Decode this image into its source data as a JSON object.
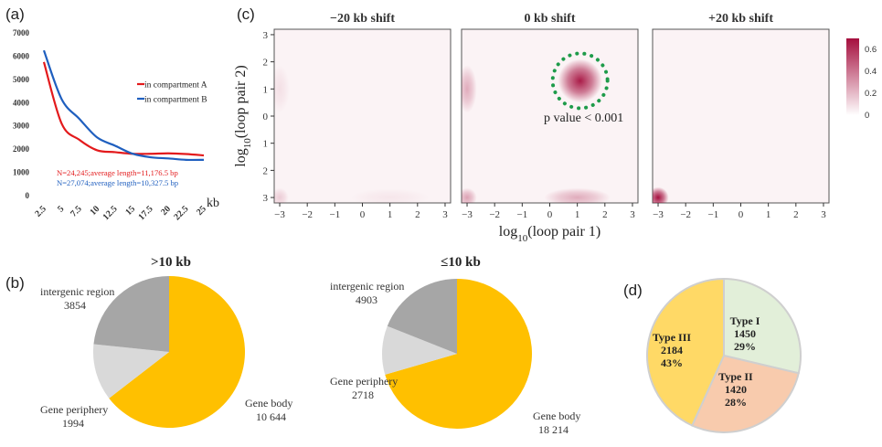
{
  "panel_labels": {
    "a": "(a)",
    "b": "(b)",
    "c": "(c)",
    "d": "(d)"
  },
  "colors": {
    "compartment_a": "#e31a1c",
    "compartment_b": "#1f5fbf",
    "gene_body": "#ffc000",
    "gene_periphery": "#d9d9d9",
    "intergenic": "#a6a6a6",
    "type1": "#e2efd9",
    "type2": "#f8cbad",
    "type3": "#ffd966",
    "heat_max": "#a50f3e",
    "circle": "#1e9b4a"
  },
  "chart_data": [
    {
      "id": "a",
      "type": "line",
      "x": [
        2.5,
        5,
        7.5,
        10,
        12.5,
        15,
        17.5,
        20,
        22.5,
        25
      ],
      "x_ticks": [
        "2.5",
        "5",
        "7.5",
        "10",
        "12.5",
        "15",
        "17.5",
        "20",
        "22.5",
        "25"
      ],
      "xlabel": "kb",
      "ylim": [
        0,
        7000
      ],
      "y_ticks": [
        "0",
        "1000",
        "2000",
        "3000",
        "4000",
        "5000",
        "6000",
        "7000"
      ],
      "series": [
        {
          "name": "in compartment A",
          "values": [
            5750,
            3100,
            2400,
            1950,
            1870,
            1800,
            1800,
            1820,
            1790,
            1730
          ]
        },
        {
          "name": "in compartment B",
          "values": [
            6250,
            4150,
            3300,
            2500,
            2150,
            1800,
            1650,
            1600,
            1540,
            1540
          ]
        }
      ],
      "annotations": [
        "N=24,245;average length=11,176.5 bp",
        "N=27,074;average length=10,327.5 bp"
      ]
    },
    {
      "id": "c",
      "type": "heatmap",
      "facets": [
        "−20 kb shift",
        "0 kb shift",
        "+20 kb shift"
      ],
      "xlabel_base": "log",
      "xlabel_sub": "10",
      "xlabel_rest": "(loop pair 1)",
      "ylabel_base": "log",
      "ylabel_sub": "10",
      "ylabel_rest": "(loop pair 2)",
      "x_ticks": [
        "−3",
        "−2",
        "−1",
        "0",
        "1",
        "2",
        "3"
      ],
      "y_ticks": [
        "3",
        "2",
        "1",
        "0",
        "1",
        "2",
        "3"
      ],
      "colorbar_ticks": [
        "0.6",
        "0.4",
        "0.2",
        "0"
      ],
      "colorbar_range": [
        0,
        0.7
      ],
      "annotation": "p value < 0.001",
      "blobs": [
        [
          {
            "x": -3,
            "y": 1,
            "sx": 0.22,
            "sy": 0.55,
            "v": 0.06
          },
          {
            "x": 1,
            "y": -3,
            "sx": 0.9,
            "sy": 0.2,
            "v": 0.04
          },
          {
            "x": -3,
            "y": -3,
            "sx": 0.2,
            "sy": 0.22,
            "v": 0.12
          }
        ],
        [
          {
            "x": 1.1,
            "y": 1.3,
            "sx": 0.5,
            "sy": 0.5,
            "v": 0.66
          },
          {
            "x": -3,
            "y": 1,
            "sx": 0.22,
            "sy": 0.55,
            "v": 0.22
          },
          {
            "x": 1.0,
            "y": -3,
            "sx": 0.75,
            "sy": 0.22,
            "v": 0.22
          },
          {
            "x": -3,
            "y": -3,
            "sx": 0.22,
            "sy": 0.22,
            "v": 0.25
          }
        ],
        [
          {
            "x": -3,
            "y": -3,
            "sx": 0.24,
            "sy": 0.24,
            "v": 0.7
          }
        ]
      ]
    },
    {
      "id": "b1",
      "type": "pie",
      "title": ">10 kb",
      "slices": [
        {
          "label": "Gene body",
          "value": "10 644",
          "v": 10644
        },
        {
          "label": "Gene periphery",
          "value": "1994",
          "v": 1994
        },
        {
          "label": "intergenic region",
          "value": "3854",
          "v": 3854
        }
      ]
    },
    {
      "id": "b2",
      "type": "pie",
      "title": "≤10 kb",
      "slices": [
        {
          "label": "Gene body",
          "value": "18 214",
          "v": 18214
        },
        {
          "label": "Gene periphery",
          "value": "2718",
          "v": 2718
        },
        {
          "label": "intergenic region",
          "value": "4903",
          "v": 4903
        }
      ]
    },
    {
      "id": "d",
      "type": "pie",
      "slices": [
        {
          "label": "Type I",
          "count": "1450",
          "pct": "29%",
          "v": 1450
        },
        {
          "label": "Type II",
          "count": "1420",
          "pct": "28%",
          "v": 1420
        },
        {
          "label": "Type III",
          "count": "2184",
          "pct": "43%",
          "v": 2184
        }
      ]
    }
  ]
}
